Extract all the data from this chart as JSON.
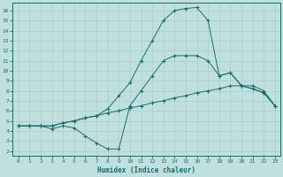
{
  "xlabel": "Humidex (Indice chaleur)",
  "bg_color": "#c0e0e0",
  "line_color": "#1a6b6b",
  "grid_color": "#a8cccc",
  "xlim": [
    -0.5,
    23.5
  ],
  "ylim": [
    1.5,
    16.8
  ],
  "xticks": [
    0,
    1,
    2,
    3,
    4,
    5,
    6,
    7,
    8,
    9,
    10,
    11,
    12,
    13,
    14,
    15,
    16,
    17,
    18,
    19,
    20,
    21,
    22,
    23
  ],
  "yticks": [
    2,
    3,
    4,
    5,
    6,
    7,
    8,
    9,
    10,
    11,
    12,
    13,
    14,
    15,
    16
  ],
  "line_peak_x": [
    0,
    1,
    2,
    3,
    4,
    5,
    6,
    7,
    8,
    9,
    10,
    11,
    12,
    13,
    14,
    15,
    16,
    17,
    18,
    19,
    20,
    21,
    22,
    23
  ],
  "line_peak_y": [
    4.5,
    4.5,
    4.5,
    4.5,
    4.8,
    5.0,
    5.3,
    5.5,
    6.2,
    7.5,
    8.8,
    11.0,
    13.0,
    15.0,
    16.0,
    16.2,
    16.3,
    15.0,
    9.5,
    9.8,
    8.5,
    8.2,
    7.8,
    6.5
  ],
  "line_dip_x": [
    0,
    1,
    2,
    3,
    4,
    5,
    6,
    7,
    8,
    9,
    10,
    11,
    12,
    13,
    14,
    15,
    16,
    17,
    18,
    19,
    20,
    21,
    22,
    23
  ],
  "line_dip_y": [
    4.5,
    4.5,
    4.5,
    4.2,
    4.5,
    4.3,
    3.5,
    2.8,
    2.2,
    2.2,
    6.5,
    8.0,
    9.5,
    11.0,
    11.5,
    11.5,
    11.5,
    11.0,
    9.5,
    9.8,
    8.5,
    8.2,
    7.8,
    6.5
  ],
  "line_flat_x": [
    0,
    1,
    2,
    3,
    4,
    5,
    6,
    7,
    8,
    9,
    10,
    11,
    12,
    13,
    14,
    15,
    16,
    17,
    18,
    19,
    20,
    21,
    22,
    23
  ],
  "line_flat_y": [
    4.5,
    4.5,
    4.5,
    4.5,
    4.8,
    5.0,
    5.3,
    5.5,
    5.8,
    6.0,
    6.3,
    6.5,
    6.8,
    7.0,
    7.3,
    7.5,
    7.8,
    8.0,
    8.2,
    8.5,
    8.5,
    8.5,
    8.0,
    6.5
  ]
}
